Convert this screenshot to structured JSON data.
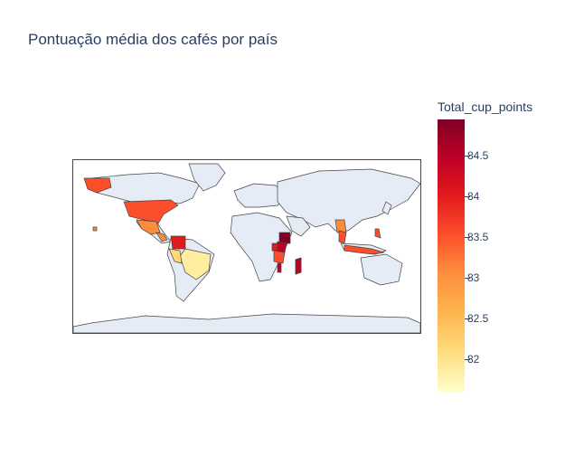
{
  "chart_data": {
    "type": "choropleth",
    "title": "Pontuação média dos cafés por país",
    "colorbar": {
      "title": "Total_cup_points",
      "range": [
        81.6,
        84.95
      ],
      "ticks": [
        "82",
        "82.5",
        "83",
        "83.5",
        "84",
        "84.5"
      ],
      "tick_values": [
        82,
        82.5,
        83,
        83.5,
        84,
        84.5
      ],
      "colorscale": [
        "#ffffcc",
        "#fed976",
        "#feb24c",
        "#fd8d3c",
        "#fc4e2a",
        "#e31a1c",
        "#bd0026",
        "#800026"
      ]
    },
    "projection": "equirectangular",
    "land_color": "#e5ecf6",
    "coastline_color": "#444444"
  }
}
